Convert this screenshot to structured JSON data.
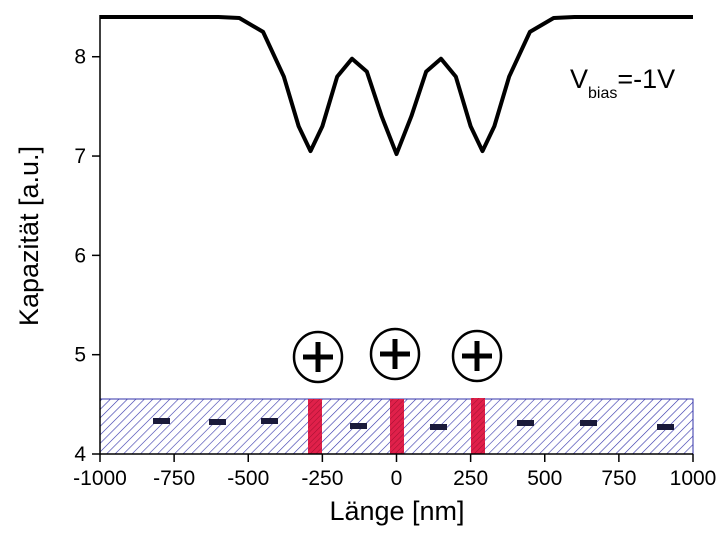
{
  "chart_data": {
    "type": "line",
    "x_label": "Länge [nm]",
    "y_label": "Kapazität [a.u.]",
    "annotation": {
      "main": "V",
      "subscript": "bias",
      "rest": "=-1V"
    },
    "x": [
      -1000,
      -700,
      -600,
      -530,
      -450,
      -380,
      -330,
      -290,
      -250,
      -200,
      -150,
      -100,
      -50,
      0,
      50,
      100,
      150,
      200,
      250,
      290,
      330,
      380,
      450,
      530,
      600,
      700,
      1000
    ],
    "series": [
      {
        "color": "#000000",
        "values": [
          8.4,
          8.4,
          8.4,
          8.39,
          8.25,
          7.8,
          7.3,
          7.05,
          7.3,
          7.8,
          7.98,
          7.85,
          7.4,
          7.02,
          7.4,
          7.85,
          7.98,
          7.8,
          7.3,
          7.05,
          7.3,
          7.8,
          8.25,
          8.39,
          8.4,
          8.4,
          8.4
        ]
      }
    ],
    "xlim": [
      -1000,
      1000
    ],
    "xticks": [
      -1000,
      -750,
      -500,
      -250,
      0,
      250,
      500,
      750,
      1000
    ],
    "ylim": [
      4,
      8.4
    ],
    "yticks": [
      4,
      5,
      6,
      7,
      8
    ]
  }
}
